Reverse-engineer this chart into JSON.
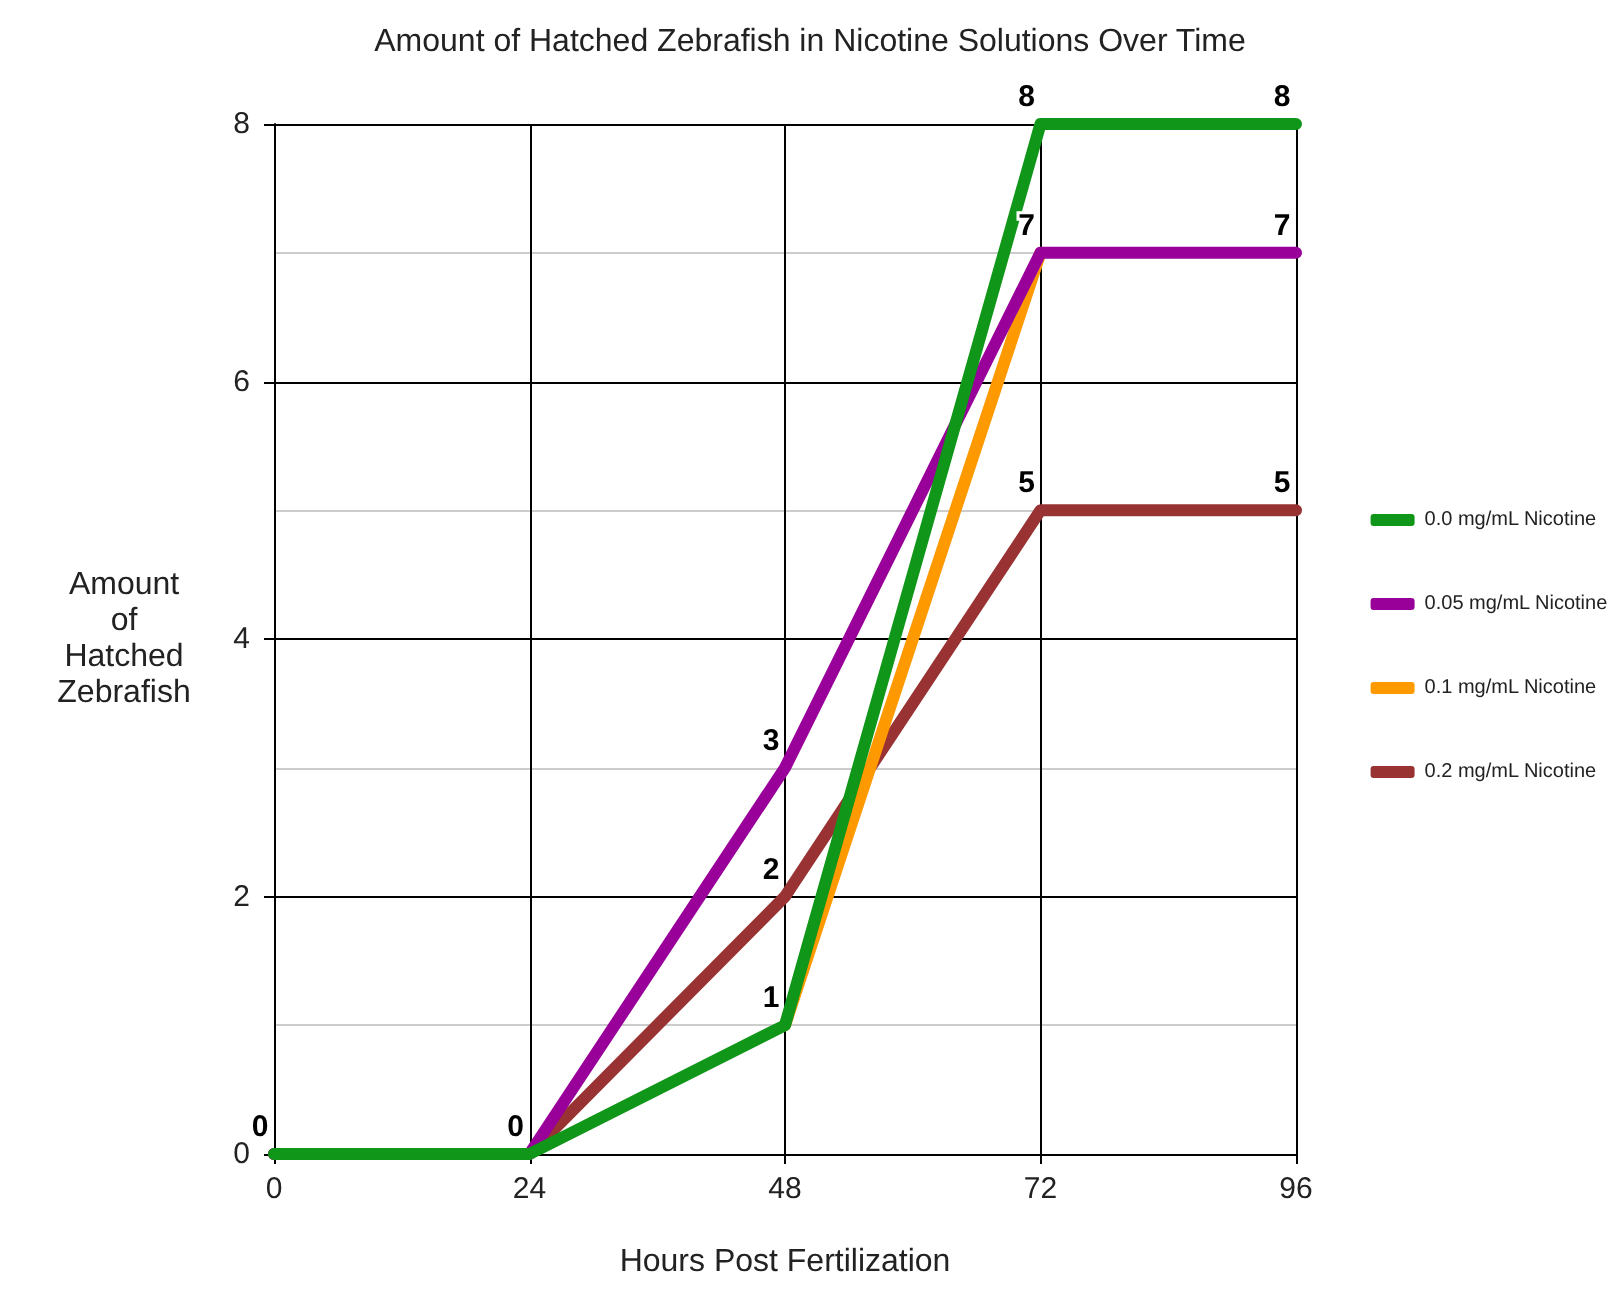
{
  "chart_data": {
    "type": "line",
    "title": "Amount of Hatched Zebrafish in Nicotine Solutions Over Time",
    "xlabel": "Hours Post Fertilization",
    "ylabel": "Amount of Hatched Zebrafish",
    "x": [
      0,
      24,
      48,
      72,
      96
    ],
    "xlim": [
      0,
      96
    ],
    "xticks": [
      0,
      24,
      48,
      72,
      96
    ],
    "ylim": [
      0,
      8
    ],
    "yticks": [
      0,
      2,
      4,
      6,
      8
    ],
    "grid": true,
    "legend": "right",
    "marker": "none",
    "line_style": "solid",
    "series": [
      {
        "name": "0.0 mg/mL Nicotine",
        "color": "#109618",
        "values": [
          0,
          0,
          1,
          8,
          8
        ],
        "value_labels": [
          "0",
          "0",
          "1",
          "8",
          "8"
        ]
      },
      {
        "name": "0.05 mg/mL Nicotine",
        "color": "#990099",
        "values": [
          0,
          0,
          3,
          7,
          7
        ],
        "value_labels": [
          null,
          null,
          "3",
          "7",
          "7"
        ]
      },
      {
        "name": "0.1 mg/mL Nicotine",
        "color": "#ff9900",
        "values": [
          null,
          null,
          1,
          7,
          null
        ],
        "value_labels": [
          null,
          null,
          null,
          null,
          null
        ]
      },
      {
        "name": "0.2 mg/mL Nicotine",
        "color": "#993333",
        "values": [
          0,
          0,
          2,
          5,
          5
        ],
        "value_labels": [
          null,
          null,
          "2",
          "5",
          "5"
        ]
      }
    ]
  }
}
